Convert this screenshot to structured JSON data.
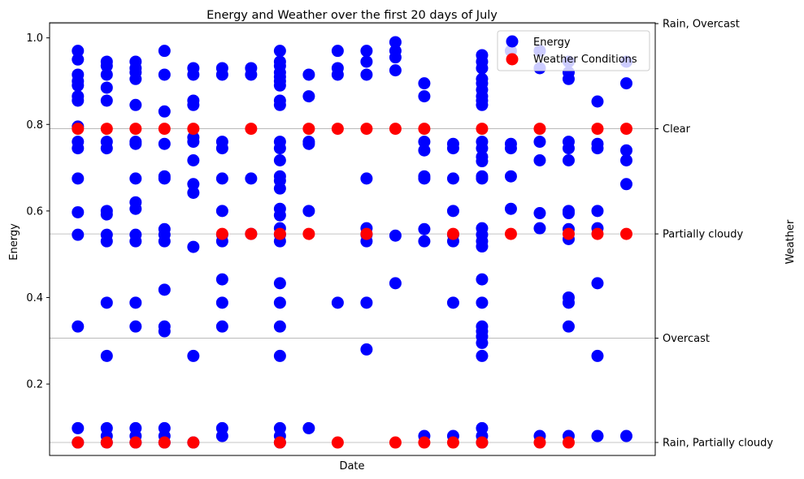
{
  "chart_data": {
    "type": "scatter",
    "title": "Energy and Weather over the first 20 days of July",
    "xlabel": "Date",
    "ylabel": "Energy",
    "y2label": "Weather",
    "ylim": [
      0.035,
      1.035
    ],
    "xlim": [
      0.02,
      21.0
    ],
    "yticks": [
      0.2,
      0.4,
      0.6,
      0.8,
      1.0
    ],
    "ytick_labels": [
      "0.2",
      "0.4",
      "0.6",
      "0.8",
      "1.0"
    ],
    "weather_levels": [
      {
        "label": "Rain, Partially cloudy",
        "y": 0.065
      },
      {
        "label": "Overcast",
        "y": 0.306
      },
      {
        "label": "Partially cloudy",
        "y": 0.547
      },
      {
        "label": "Clear",
        "y": 0.79
      },
      {
        "label": "Rain, Overcast",
        "y": 1.033
      }
    ],
    "legend": {
      "position": "top-right"
    },
    "series": [
      {
        "name": "Energy",
        "color": "#0000ff",
        "points": [
          [
            1,
            0.97
          ],
          [
            1,
            0.95
          ],
          [
            1,
            0.915
          ],
          [
            1,
            0.9
          ],
          [
            1,
            0.89
          ],
          [
            1,
            0.865
          ],
          [
            1,
            0.855
          ],
          [
            1,
            0.795
          ],
          [
            1,
            0.76
          ],
          [
            1,
            0.745
          ],
          [
            1,
            0.675
          ],
          [
            1,
            0.597
          ],
          [
            1,
            0.545
          ],
          [
            1,
            0.333
          ],
          [
            1,
            0.098
          ],
          [
            1,
            0.065
          ],
          [
            2,
            0.945
          ],
          [
            2,
            0.935
          ],
          [
            2,
            0.915
          ],
          [
            2,
            0.885
          ],
          [
            2,
            0.855
          ],
          [
            2,
            0.76
          ],
          [
            2,
            0.745
          ],
          [
            2,
            0.6
          ],
          [
            2,
            0.592
          ],
          [
            2,
            0.545
          ],
          [
            2,
            0.53
          ],
          [
            2,
            0.388
          ],
          [
            2,
            0.265
          ],
          [
            2,
            0.098
          ],
          [
            2,
            0.08
          ],
          [
            2,
            0.065
          ],
          [
            3,
            0.945
          ],
          [
            3,
            0.93
          ],
          [
            3,
            0.92
          ],
          [
            3,
            0.905
          ],
          [
            3,
            0.845
          ],
          [
            3,
            0.76
          ],
          [
            3,
            0.755
          ],
          [
            3,
            0.675
          ],
          [
            3,
            0.62
          ],
          [
            3,
            0.605
          ],
          [
            3,
            0.545
          ],
          [
            3,
            0.53
          ],
          [
            3,
            0.388
          ],
          [
            3,
            0.333
          ],
          [
            3,
            0.098
          ],
          [
            3,
            0.08
          ],
          [
            3,
            0.065
          ],
          [
            4,
            0.97
          ],
          [
            4,
            0.915
          ],
          [
            4,
            0.83
          ],
          [
            4,
            0.755
          ],
          [
            4,
            0.68
          ],
          [
            4,
            0.675
          ],
          [
            4,
            0.558
          ],
          [
            4,
            0.545
          ],
          [
            4,
            0.53
          ],
          [
            4,
            0.418
          ],
          [
            4,
            0.333
          ],
          [
            4,
            0.322
          ],
          [
            4,
            0.098
          ],
          [
            4,
            0.08
          ],
          [
            4,
            0.065
          ],
          [
            5,
            0.93
          ],
          [
            5,
            0.915
          ],
          [
            5,
            0.855
          ],
          [
            5,
            0.845
          ],
          [
            5,
            0.77
          ],
          [
            5,
            0.76
          ],
          [
            5,
            0.717
          ],
          [
            5,
            0.662
          ],
          [
            5,
            0.642
          ],
          [
            5,
            0.517
          ],
          [
            5,
            0.265
          ],
          [
            5,
            0.065
          ],
          [
            6,
            0.93
          ],
          [
            6,
            0.915
          ],
          [
            6,
            0.76
          ],
          [
            6,
            0.745
          ],
          [
            6,
            0.675
          ],
          [
            6,
            0.6
          ],
          [
            6,
            0.545
          ],
          [
            6,
            0.53
          ],
          [
            6,
            0.442
          ],
          [
            6,
            0.388
          ],
          [
            6,
            0.333
          ],
          [
            6,
            0.098
          ],
          [
            6,
            0.08
          ],
          [
            7,
            0.93
          ],
          [
            7,
            0.915
          ],
          [
            7,
            0.675
          ],
          [
            7,
            0.547
          ],
          [
            8,
            0.97
          ],
          [
            8,
            0.945
          ],
          [
            8,
            0.935
          ],
          [
            8,
            0.92
          ],
          [
            8,
            0.91
          ],
          [
            8,
            0.9
          ],
          [
            8,
            0.89
          ],
          [
            8,
            0.855
          ],
          [
            8,
            0.845
          ],
          [
            8,
            0.76
          ],
          [
            8,
            0.745
          ],
          [
            8,
            0.717
          ],
          [
            8,
            0.68
          ],
          [
            8,
            0.67
          ],
          [
            8,
            0.652
          ],
          [
            8,
            0.605
          ],
          [
            8,
            0.59
          ],
          [
            8,
            0.56
          ],
          [
            8,
            0.545
          ],
          [
            8,
            0.53
          ],
          [
            8,
            0.433
          ],
          [
            8,
            0.388
          ],
          [
            8,
            0.333
          ],
          [
            8,
            0.265
          ],
          [
            8,
            0.098
          ],
          [
            8,
            0.08
          ],
          [
            8,
            0.065
          ],
          [
            9,
            0.915
          ],
          [
            9,
            0.865
          ],
          [
            9,
            0.76
          ],
          [
            9,
            0.755
          ],
          [
            9,
            0.6
          ],
          [
            9,
            0.098
          ],
          [
            10,
            0.97
          ],
          [
            10,
            0.93
          ],
          [
            10,
            0.915
          ],
          [
            10,
            0.388
          ],
          [
            11,
            0.97
          ],
          [
            11,
            0.945
          ],
          [
            11,
            0.915
          ],
          [
            11,
            0.675
          ],
          [
            11,
            0.56
          ],
          [
            11,
            0.545
          ],
          [
            11,
            0.53
          ],
          [
            11,
            0.388
          ],
          [
            11,
            0.28
          ],
          [
            12,
            0.99
          ],
          [
            12,
            0.97
          ],
          [
            12,
            0.955
          ],
          [
            12,
            0.925
          ],
          [
            12,
            0.543
          ],
          [
            12,
            0.433
          ],
          [
            13,
            0.895
          ],
          [
            13,
            0.865
          ],
          [
            13,
            0.76
          ],
          [
            13,
            0.74
          ],
          [
            13,
            0.68
          ],
          [
            13,
            0.675
          ],
          [
            13,
            0.558
          ],
          [
            13,
            0.53
          ],
          [
            13,
            0.08
          ],
          [
            14,
            0.755
          ],
          [
            14,
            0.745
          ],
          [
            14,
            0.675
          ],
          [
            14,
            0.6
          ],
          [
            14,
            0.545
          ],
          [
            14,
            0.53
          ],
          [
            14,
            0.388
          ],
          [
            14,
            0.08
          ],
          [
            15,
            0.96
          ],
          [
            15,
            0.945
          ],
          [
            15,
            0.93
          ],
          [
            15,
            0.905
          ],
          [
            15,
            0.895
          ],
          [
            15,
            0.88
          ],
          [
            15,
            0.865
          ],
          [
            15,
            0.855
          ],
          [
            15,
            0.845
          ],
          [
            15,
            0.76
          ],
          [
            15,
            0.745
          ],
          [
            15,
            0.725
          ],
          [
            15,
            0.715
          ],
          [
            15,
            0.68
          ],
          [
            15,
            0.675
          ],
          [
            15,
            0.56
          ],
          [
            15,
            0.545
          ],
          [
            15,
            0.53
          ],
          [
            15,
            0.518
          ],
          [
            15,
            0.442
          ],
          [
            15,
            0.388
          ],
          [
            15,
            0.333
          ],
          [
            15,
            0.322
          ],
          [
            15,
            0.31
          ],
          [
            15,
            0.295
          ],
          [
            15,
            0.265
          ],
          [
            15,
            0.098
          ],
          [
            15,
            0.08
          ],
          [
            15,
            0.065
          ],
          [
            16,
            0.97
          ],
          [
            16,
            0.755
          ],
          [
            16,
            0.745
          ],
          [
            16,
            0.68
          ],
          [
            16,
            0.605
          ],
          [
            17,
            0.97
          ],
          [
            17,
            0.93
          ],
          [
            17,
            0.76
          ],
          [
            17,
            0.717
          ],
          [
            17,
            0.595
          ],
          [
            17,
            0.56
          ],
          [
            17,
            0.08
          ],
          [
            18,
            0.945
          ],
          [
            18,
            0.92
          ],
          [
            18,
            0.905
          ],
          [
            18,
            0.76
          ],
          [
            18,
            0.745
          ],
          [
            18,
            0.717
          ],
          [
            18,
            0.6
          ],
          [
            18,
            0.595
          ],
          [
            18,
            0.558
          ],
          [
            18,
            0.535
          ],
          [
            18,
            0.4
          ],
          [
            18,
            0.388
          ],
          [
            18,
            0.333
          ],
          [
            18,
            0.08
          ],
          [
            19,
            0.853
          ],
          [
            19,
            0.755
          ],
          [
            19,
            0.745
          ],
          [
            19,
            0.6
          ],
          [
            19,
            0.56
          ],
          [
            19,
            0.433
          ],
          [
            19,
            0.265
          ],
          [
            19,
            0.08
          ],
          [
            20,
            0.945
          ],
          [
            20,
            0.895
          ],
          [
            20,
            0.74
          ],
          [
            20,
            0.717
          ],
          [
            20,
            0.662
          ],
          [
            20,
            0.08
          ]
        ]
      },
      {
        "name": "Weather Conditions",
        "color": "#ff0000",
        "points": [
          [
            1,
            0.79
          ],
          [
            1,
            0.065
          ],
          [
            2,
            0.79
          ],
          [
            2,
            0.065
          ],
          [
            3,
            0.79
          ],
          [
            3,
            0.065
          ],
          [
            4,
            0.79
          ],
          [
            4,
            0.065
          ],
          [
            5,
            0.79
          ],
          [
            5,
            0.065
          ],
          [
            6,
            0.547
          ],
          [
            7,
            0.79
          ],
          [
            7,
            0.547
          ],
          [
            8,
            0.547
          ],
          [
            8,
            0.065
          ],
          [
            9,
            0.79
          ],
          [
            9,
            0.547
          ],
          [
            10,
            0.79
          ],
          [
            10,
            0.065
          ],
          [
            11,
            0.79
          ],
          [
            11,
            0.547
          ],
          [
            12,
            0.79
          ],
          [
            12,
            0.065
          ],
          [
            13,
            0.79
          ],
          [
            13,
            0.065
          ],
          [
            14,
            0.547
          ],
          [
            14,
            0.065
          ],
          [
            15,
            0.79
          ],
          [
            15,
            0.065
          ],
          [
            16,
            0.547
          ],
          [
            17,
            0.79
          ],
          [
            17,
            0.065
          ],
          [
            18,
            0.547
          ],
          [
            18,
            0.065
          ],
          [
            19,
            0.79
          ],
          [
            19,
            0.547
          ],
          [
            20,
            0.79
          ],
          [
            20,
            0.547
          ]
        ]
      }
    ]
  }
}
